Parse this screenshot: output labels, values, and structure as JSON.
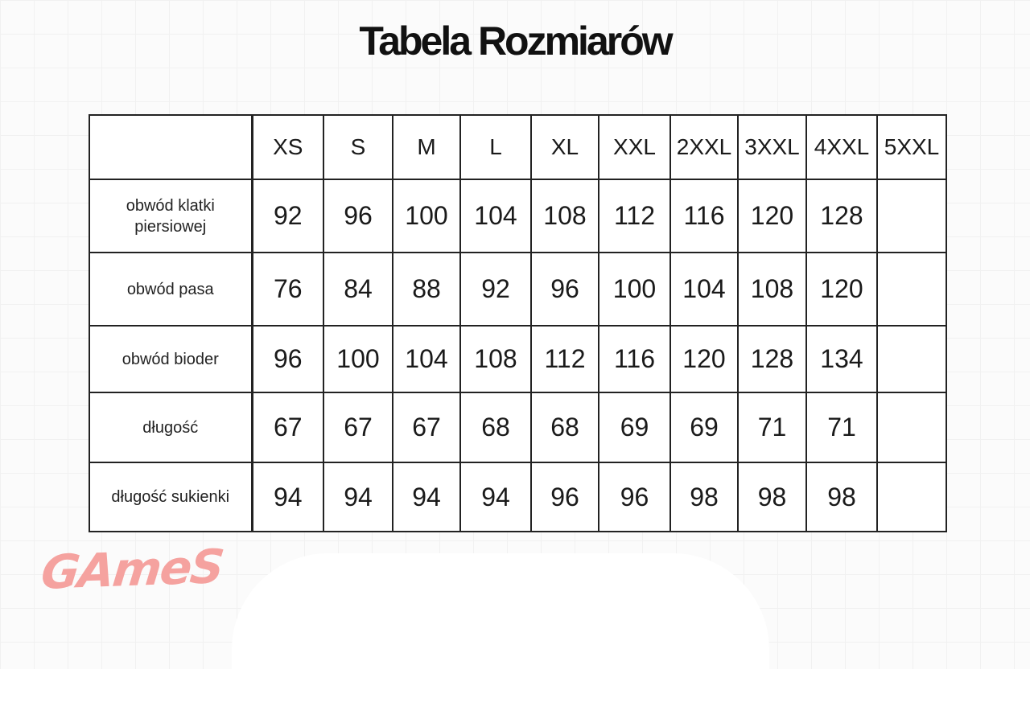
{
  "title": "Tabela Rozmiarów",
  "logo_text": "GAmeS",
  "logo_color": "#f5a29f",
  "table": {
    "corner": "",
    "sizes": [
      "XS",
      "S",
      "M",
      "L",
      "XL",
      "XXL",
      "2XXL",
      "3XXL",
      "4XXL",
      "5XXL"
    ],
    "rows": [
      {
        "label": "obwód klatki piersiowej",
        "values": [
          "92",
          "96",
          "100",
          "104",
          "108",
          "112",
          "116",
          "120",
          "128",
          ""
        ]
      },
      {
        "label": "obwód pasa",
        "values": [
          "76",
          "84",
          "88",
          "92",
          "96",
          "100",
          "104",
          "108",
          "120",
          ""
        ]
      },
      {
        "label": "obwód bioder",
        "values": [
          "96",
          "100",
          "104",
          "108",
          "112",
          "116",
          "120",
          "128",
          "134",
          ""
        ]
      },
      {
        "label": "długość",
        "values": [
          "67",
          "67",
          "67",
          "68",
          "68",
          "69",
          "69",
          "71",
          "71",
          ""
        ]
      },
      {
        "label": "długość sukienki",
        "values": [
          "94",
          "94",
          "94",
          "94",
          "96",
          "96",
          "98",
          "98",
          "98",
          ""
        ]
      }
    ]
  }
}
